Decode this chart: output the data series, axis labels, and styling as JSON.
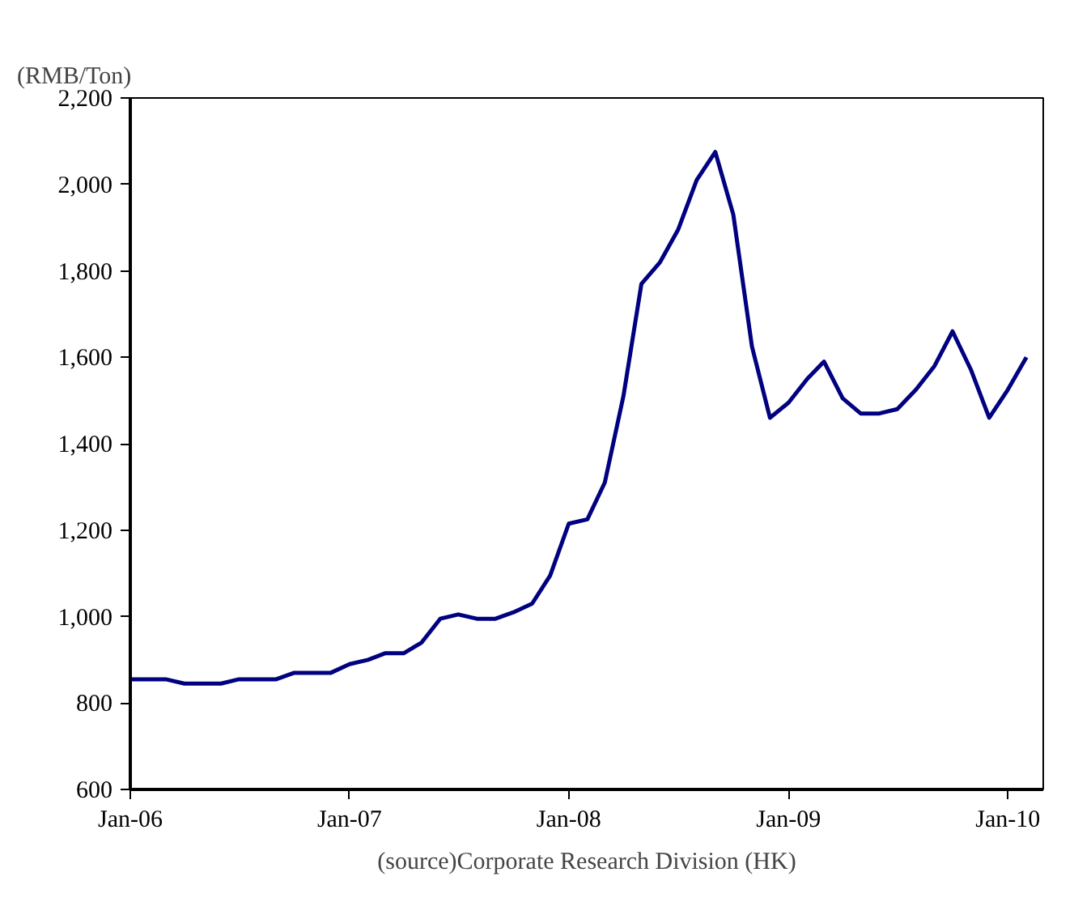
{
  "chart_data": {
    "type": "line",
    "ylabel": "(RMB/Ton)",
    "x": [
      "2006-01",
      "2006-02",
      "2006-03",
      "2006-04",
      "2006-05",
      "2006-06",
      "2006-07",
      "2006-08",
      "2006-09",
      "2006-10",
      "2006-11",
      "2006-12",
      "2007-01",
      "2007-02",
      "2007-03",
      "2007-04",
      "2007-05",
      "2007-06",
      "2007-07",
      "2007-08",
      "2007-09",
      "2007-10",
      "2007-11",
      "2007-12",
      "2008-01",
      "2008-02",
      "2008-03",
      "2008-04",
      "2008-05",
      "2008-06",
      "2008-07",
      "2008-08",
      "2008-09",
      "2008-10",
      "2008-11",
      "2008-12",
      "2009-01",
      "2009-02",
      "2009-03",
      "2009-04",
      "2009-05",
      "2009-06",
      "2009-07",
      "2009-08",
      "2009-09",
      "2009-10",
      "2009-11",
      "2009-12",
      "2010-01",
      "2010-02"
    ],
    "series": [
      {
        "color": "#000080",
        "values": [
          855,
          855,
          855,
          845,
          845,
          845,
          855,
          855,
          855,
          870,
          870,
          870,
          890,
          900,
          915,
          915,
          940,
          995,
          1005,
          995,
          995,
          1010,
          1030,
          1095,
          1215,
          1225,
          1310,
          1510,
          1770,
          1820,
          1895,
          2010,
          2075,
          1930,
          1625,
          1460,
          1495,
          1550,
          1590,
          1505,
          1470,
          1470,
          1480,
          1525,
          1580,
          1660,
          1570,
          1460,
          1525,
          1600
        ]
      }
    ],
    "xlim": [
      "2006-01",
      "2010-03"
    ],
    "xticks": [
      {
        "value": "2006-01",
        "label": "Jan-06"
      },
      {
        "value": "2007-01",
        "label": "Jan-07"
      },
      {
        "value": "2008-01",
        "label": "Jan-08"
      },
      {
        "value": "2009-01",
        "label": "Jan-09"
      },
      {
        "value": "2010-01",
        "label": "Jan-10"
      }
    ],
    "ylim": [
      600,
      2200
    ],
    "yticks": [
      {
        "value": 600,
        "label": "600"
      },
      {
        "value": 800,
        "label": "800"
      },
      {
        "value": 1000,
        "label": "1,000"
      },
      {
        "value": 1200,
        "label": "1,200"
      },
      {
        "value": 1400,
        "label": "1,400"
      },
      {
        "value": 1600,
        "label": "1,600"
      },
      {
        "value": 1800,
        "label": "1,800"
      },
      {
        "value": 2000,
        "label": "2,000"
      },
      {
        "value": 2200,
        "label": "2,200"
      }
    ],
    "grid": false,
    "marker": "none",
    "line_style": "solid",
    "annotations": [
      "(source)Corporate Research Division (HK)"
    ]
  }
}
